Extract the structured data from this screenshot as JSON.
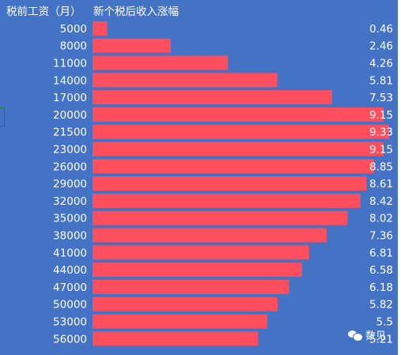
{
  "chart_data": {
    "type": "bar",
    "orientation": "horizontal",
    "category_header": "税前工资（月）",
    "value_header": "新个税后收入涨幅",
    "categories": [
      "5000",
      "8000",
      "11000",
      "14000",
      "17000",
      "20000",
      "21500",
      "23000",
      "26000",
      "29000",
      "32000",
      "35000",
      "38000",
      "41000",
      "44000",
      "47000",
      "50000",
      "53000",
      "56000"
    ],
    "values": [
      0.46,
      2.46,
      4.26,
      5.81,
      7.53,
      9.15,
      9.33,
      9.15,
      8.85,
      8.61,
      8.42,
      8.02,
      7.36,
      6.81,
      6.58,
      6.18,
      5.82,
      5.5,
      5.21
    ],
    "value_labels": [
      "0.46",
      "2.46",
      "4.26",
      "5.81",
      "7.53",
      "9.15",
      "9.33",
      "9.15",
      "8.85",
      "8.61",
      "8.42",
      "8.02",
      "7.36",
      "6.81",
      "6.58",
      "6.18",
      "5.82",
      "5.5",
      "5.21"
    ],
    "xlim": [
      0,
      9.6
    ],
    "grid": false,
    "legend": "none",
    "colors": {
      "background": "#4472c4",
      "bar": "#ff4f5e",
      "text": "#ffffff"
    }
  },
  "watermark": {
    "text": "数见",
    "icon": "chat-bubbles-icon"
  }
}
